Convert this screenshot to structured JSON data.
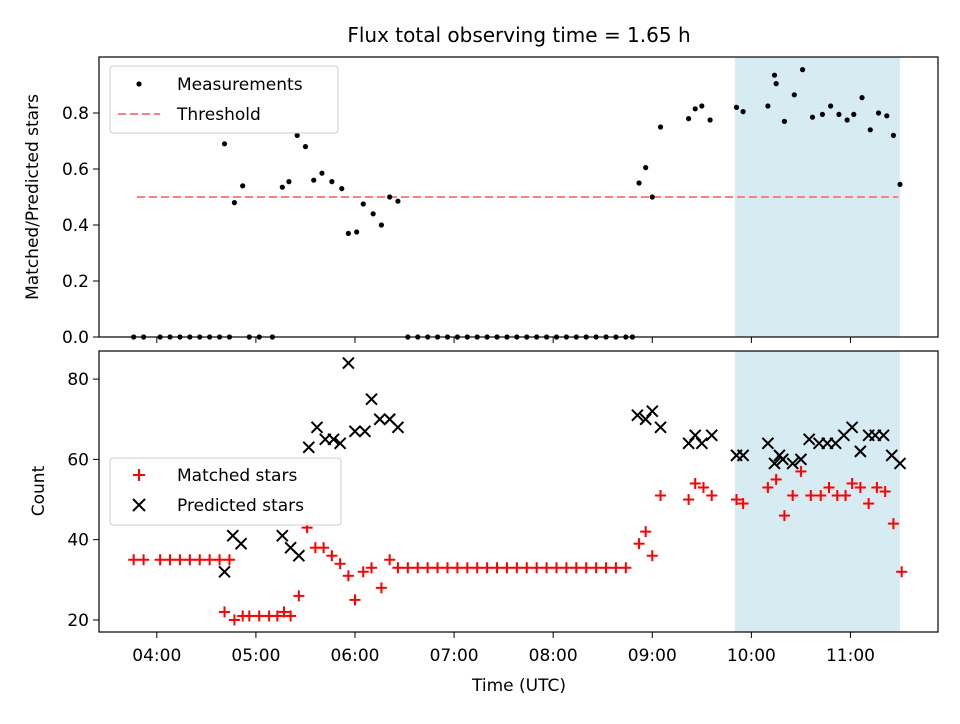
{
  "title": "Flux total observing time = 1.65 h",
  "colors": {
    "measurement": "#000000",
    "threshold": "#ff7f7f",
    "matched": "#ff0000",
    "predicted": "#000000",
    "highlight": "#add8e6"
  },
  "chart_data": [
    {
      "type": "scatter",
      "ylabel": "Matched/Predicted stars",
      "xlabel": "",
      "xlim": [
        "03:25",
        "11:53"
      ],
      "ylim": [
        0,
        1.0
      ],
      "yticks": [
        "0.0",
        "0.2",
        "0.4",
        "0.6",
        "0.8"
      ],
      "legend": {
        "position": "top-left",
        "entries": [
          "Measurements",
          "Threshold"
        ]
      },
      "highlight_span": [
        "09:50",
        "11:30"
      ],
      "threshold": 0.5,
      "threshold_range": [
        "03:48",
        "11:29"
      ],
      "series": [
        {
          "name": "Measurements",
          "marker": "dot",
          "points": [
            [
              "03:46",
              0
            ],
            [
              "03:52",
              0
            ],
            [
              "04:02",
              0
            ],
            [
              "04:08",
              0
            ],
            [
              "04:14",
              0
            ],
            [
              "04:20",
              0
            ],
            [
              "04:26",
              0
            ],
            [
              "04:32",
              0
            ],
            [
              "04:38",
              0
            ],
            [
              "04:44",
              0
            ],
            [
              "04:41",
              0.69
            ],
            [
              "04:47",
              0.48
            ],
            [
              "04:52",
              0.54
            ],
            [
              "04:56",
              0
            ],
            [
              "05:02",
              0
            ],
            [
              "05:10",
              0
            ],
            [
              "05:16",
              0.535
            ],
            [
              "05:20",
              0.555
            ],
            [
              "05:25",
              0.72
            ],
            [
              "05:30",
              0.68
            ],
            [
              "05:35",
              0.56
            ],
            [
              "05:40",
              0.585
            ],
            [
              "05:46",
              0.555
            ],
            [
              "05:52",
              0.53
            ],
            [
              "05:56",
              0.37
            ],
            [
              "06:01",
              0.375
            ],
            [
              "06:05",
              0.475
            ],
            [
              "06:11",
              0.44
            ],
            [
              "06:16",
              0.4
            ],
            [
              "06:21",
              0.5
            ],
            [
              "06:26",
              0.485
            ],
            [
              "06:32",
              0
            ],
            [
              "06:38",
              0
            ],
            [
              "06:44",
              0
            ],
            [
              "06:50",
              0
            ],
            [
              "06:56",
              0
            ],
            [
              "07:02",
              0
            ],
            [
              "07:08",
              0
            ],
            [
              "07:14",
              0
            ],
            [
              "07:20",
              0
            ],
            [
              "07:26",
              0
            ],
            [
              "07:32",
              0
            ],
            [
              "07:38",
              0
            ],
            [
              "07:44",
              0
            ],
            [
              "07:50",
              0
            ],
            [
              "07:56",
              0
            ],
            [
              "08:02",
              0
            ],
            [
              "08:08",
              0
            ],
            [
              "08:14",
              0
            ],
            [
              "08:20",
              0
            ],
            [
              "08:26",
              0
            ],
            [
              "08:32",
              0
            ],
            [
              "08:38",
              0
            ],
            [
              "08:44",
              0
            ],
            [
              "08:48",
              0
            ],
            [
              "08:52",
              0.55
            ],
            [
              "08:56",
              0.605
            ],
            [
              "09:00",
              0.5
            ],
            [
              "09:05",
              0.75
            ],
            [
              "09:22",
              0.78
            ],
            [
              "09:26",
              0.815
            ],
            [
              "09:30",
              0.825
            ],
            [
              "09:35",
              0.775
            ],
            [
              "09:51",
              0.82
            ],
            [
              "09:55",
              0.805
            ],
            [
              "10:10",
              0.825
            ],
            [
              "10:14",
              0.935
            ],
            [
              "10:15",
              0.905
            ],
            [
              "10:20",
              0.77
            ],
            [
              "10:26",
              0.865
            ],
            [
              "10:31",
              0.955
            ],
            [
              "10:37",
              0.785
            ],
            [
              "10:43",
              0.795
            ],
            [
              "10:48",
              0.825
            ],
            [
              "10:53",
              0.795
            ],
            [
              "10:58",
              0.775
            ],
            [
              "11:02",
              0.795
            ],
            [
              "11:07",
              0.855
            ],
            [
              "11:12",
              0.74
            ],
            [
              "11:17",
              0.8
            ],
            [
              "11:22",
              0.79
            ],
            [
              "11:26",
              0.72
            ],
            [
              "11:30",
              0.545
            ]
          ]
        }
      ]
    },
    {
      "type": "scatter",
      "ylabel": "Count",
      "xlabel": "Time (UTC)",
      "xlim": [
        "03:25",
        "11:53"
      ],
      "ylim": [
        17,
        87
      ],
      "yticks": [
        "20",
        "40",
        "60",
        "80"
      ],
      "xticks": [
        "04:00",
        "05:00",
        "06:00",
        "07:00",
        "08:00",
        "09:00",
        "10:00",
        "11:00"
      ],
      "legend": {
        "position": "center-left",
        "entries": [
          "Matched stars",
          "Predicted stars"
        ]
      },
      "highlight_span": [
        "09:50",
        "11:30"
      ],
      "series": [
        {
          "name": "Matched stars",
          "marker": "plus",
          "points": [
            [
              "03:46",
              35
            ],
            [
              "03:52",
              35
            ],
            [
              "04:02",
              35
            ],
            [
              "04:08",
              35
            ],
            [
              "04:14",
              35
            ],
            [
              "04:20",
              35
            ],
            [
              "04:26",
              35
            ],
            [
              "04:32",
              35
            ],
            [
              "04:38",
              35
            ],
            [
              "04:44",
              35
            ],
            [
              "04:41",
              22
            ],
            [
              "04:47",
              20
            ],
            [
              "04:52",
              21
            ],
            [
              "04:56",
              21
            ],
            [
              "05:02",
              21
            ],
            [
              "05:08",
              21
            ],
            [
              "05:13",
              21
            ],
            [
              "05:17",
              22
            ],
            [
              "05:21",
              21
            ],
            [
              "05:26",
              26
            ],
            [
              "05:31",
              43
            ],
            [
              "05:36",
              38
            ],
            [
              "05:41",
              38
            ],
            [
              "05:46",
              36
            ],
            [
              "05:51",
              34
            ],
            [
              "05:56",
              31
            ],
            [
              "06:00",
              25
            ],
            [
              "06:05",
              32
            ],
            [
              "06:10",
              33
            ],
            [
              "06:16",
              28
            ],
            [
              "06:21",
              35
            ],
            [
              "06:26",
              33
            ],
            [
              "06:32",
              33
            ],
            [
              "06:38",
              33
            ],
            [
              "06:44",
              33
            ],
            [
              "06:50",
              33
            ],
            [
              "06:56",
              33
            ],
            [
              "07:02",
              33
            ],
            [
              "07:08",
              33
            ],
            [
              "07:14",
              33
            ],
            [
              "07:20",
              33
            ],
            [
              "07:26",
              33
            ],
            [
              "07:32",
              33
            ],
            [
              "07:38",
              33
            ],
            [
              "07:44",
              33
            ],
            [
              "07:50",
              33
            ],
            [
              "07:56",
              33
            ],
            [
              "08:02",
              33
            ],
            [
              "08:08",
              33
            ],
            [
              "08:14",
              33
            ],
            [
              "08:20",
              33
            ],
            [
              "08:26",
              33
            ],
            [
              "08:32",
              33
            ],
            [
              "08:38",
              33
            ],
            [
              "08:44",
              33
            ],
            [
              "08:52",
              39
            ],
            [
              "08:56",
              42
            ],
            [
              "09:00",
              36
            ],
            [
              "09:05",
              51
            ],
            [
              "09:22",
              50
            ],
            [
              "09:26",
              54
            ],
            [
              "09:31",
              53
            ],
            [
              "09:36",
              51
            ],
            [
              "09:51",
              50
            ],
            [
              "09:55",
              49
            ],
            [
              "10:10",
              53
            ],
            [
              "10:15",
              55
            ],
            [
              "10:20",
              46
            ],
            [
              "10:25",
              51
            ],
            [
              "10:30",
              57
            ],
            [
              "10:36",
              51
            ],
            [
              "10:42",
              51
            ],
            [
              "10:47",
              53
            ],
            [
              "10:52",
              51
            ],
            [
              "10:57",
              51
            ],
            [
              "11:01",
              54
            ],
            [
              "11:06",
              53
            ],
            [
              "11:11",
              49
            ],
            [
              "11:16",
              53
            ],
            [
              "11:21",
              52
            ],
            [
              "11:26",
              44
            ],
            [
              "11:31",
              32
            ]
          ]
        },
        {
          "name": "Predicted stars",
          "marker": "x",
          "points": [
            [
              "04:41",
              32
            ],
            [
              "04:46",
              41
            ],
            [
              "04:51",
              39
            ],
            [
              "05:16",
              41
            ],
            [
              "05:21",
              38
            ],
            [
              "05:26",
              36
            ],
            [
              "05:32",
              63
            ],
            [
              "05:37",
              68
            ],
            [
              "05:42",
              65
            ],
            [
              "05:47",
              65
            ],
            [
              "05:51",
              64
            ],
            [
              "05:56",
              84
            ],
            [
              "06:00",
              67
            ],
            [
              "06:06",
              67
            ],
            [
              "06:10",
              75
            ],
            [
              "06:15",
              70
            ],
            [
              "06:21",
              70
            ],
            [
              "06:26",
              68
            ],
            [
              "08:51",
              71
            ],
            [
              "08:56",
              70
            ],
            [
              "09:00",
              72
            ],
            [
              "09:05",
              68
            ],
            [
              "09:22",
              64
            ],
            [
              "09:26",
              66
            ],
            [
              "09:30",
              64
            ],
            [
              "09:36",
              66
            ],
            [
              "09:51",
              61
            ],
            [
              "09:55",
              61
            ],
            [
              "10:10",
              64
            ],
            [
              "10:14",
              59
            ],
            [
              "10:17",
              61
            ],
            [
              "10:19",
              60
            ],
            [
              "10:25",
              59
            ],
            [
              "10:30",
              60
            ],
            [
              "10:35",
              65
            ],
            [
              "10:41",
              64
            ],
            [
              "10:46",
              64
            ],
            [
              "10:51",
              64
            ],
            [
              "10:56",
              66
            ],
            [
              "11:01",
              68
            ],
            [
              "11:06",
              62
            ],
            [
              "11:11",
              66
            ],
            [
              "11:15",
              66
            ],
            [
              "11:20",
              66
            ],
            [
              "11:25",
              61
            ],
            [
              "11:30",
              59
            ]
          ]
        }
      ]
    }
  ]
}
